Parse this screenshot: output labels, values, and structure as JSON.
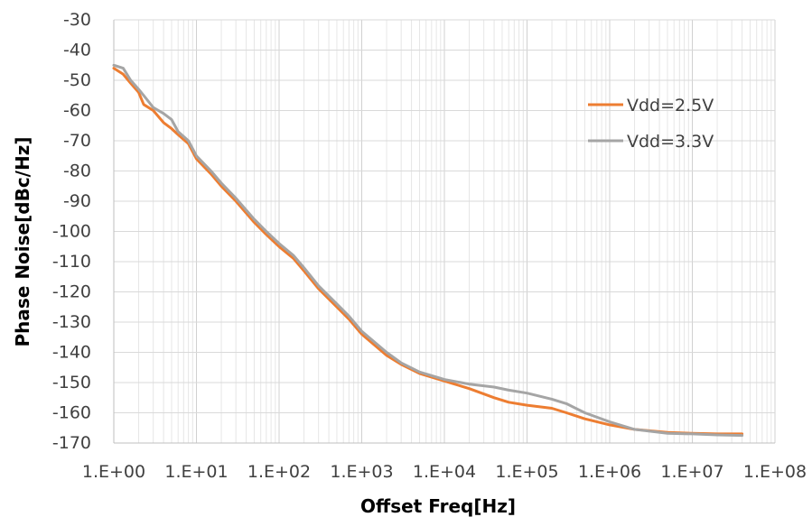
{
  "chart_data": {
    "type": "line",
    "xlabel": "Offset Freq[Hz]",
    "ylabel": "Phase Noise[dBc/Hz]",
    "x_scale": "log",
    "xlim": [
      1,
      100000000
    ],
    "ylim": [
      -170,
      -30
    ],
    "grid": true,
    "legend_position": "right",
    "x_ticks": [
      {
        "value": 1,
        "label": "1.E+00"
      },
      {
        "value": 10,
        "label": "1.E+01"
      },
      {
        "value": 100,
        "label": "1.E+02"
      },
      {
        "value": 1000,
        "label": "1.E+03"
      },
      {
        "value": 10000,
        "label": "1.E+04"
      },
      {
        "value": 100000,
        "label": "1.E+05"
      },
      {
        "value": 1000000,
        "label": "1.E+06"
      },
      {
        "value": 10000000,
        "label": "1.E+07"
      },
      {
        "value": 100000000,
        "label": "1.E+08"
      }
    ],
    "y_ticks": [
      {
        "value": -30,
        "label": "-30"
      },
      {
        "value": -40,
        "label": "-40"
      },
      {
        "value": -50,
        "label": "-50"
      },
      {
        "value": -60,
        "label": "-60"
      },
      {
        "value": -70,
        "label": "-70"
      },
      {
        "value": -80,
        "label": "-80"
      },
      {
        "value": -90,
        "label": "-90"
      },
      {
        "value": -100,
        "label": "-100"
      },
      {
        "value": -110,
        "label": "-110"
      },
      {
        "value": -120,
        "label": "-120"
      },
      {
        "value": -130,
        "label": "-130"
      },
      {
        "value": -140,
        "label": "-140"
      },
      {
        "value": -150,
        "label": "-150"
      },
      {
        "value": -160,
        "label": "-160"
      },
      {
        "value": -170,
        "label": "-170"
      }
    ],
    "series": [
      {
        "name": "Vdd=2.5V",
        "color": "#ED7D31",
        "points": [
          [
            1.0,
            -46
          ],
          [
            1.3,
            -48
          ],
          [
            1.6,
            -51
          ],
          [
            2.0,
            -54
          ],
          [
            2.3,
            -58
          ],
          [
            3.0,
            -60
          ],
          [
            4.0,
            -64
          ],
          [
            5.0,
            -66
          ],
          [
            6.0,
            -68
          ],
          [
            8.0,
            -71
          ],
          [
            10,
            -76
          ],
          [
            15,
            -81
          ],
          [
            20,
            -85
          ],
          [
            30,
            -90
          ],
          [
            50,
            -97
          ],
          [
            70,
            -101
          ],
          [
            100,
            -105
          ],
          [
            150,
            -109
          ],
          [
            200,
            -113
          ],
          [
            300,
            -119
          ],
          [
            500,
            -125
          ],
          [
            700,
            -129
          ],
          [
            1000,
            -134
          ],
          [
            2000,
            -141
          ],
          [
            3000,
            -144
          ],
          [
            5000,
            -147
          ],
          [
            10000,
            -149.5
          ],
          [
            20000,
            -152
          ],
          [
            40000,
            -155
          ],
          [
            60000,
            -156.5
          ],
          [
            100000,
            -157.5
          ],
          [
            200000,
            -158.5
          ],
          [
            300000,
            -160
          ],
          [
            500000,
            -162
          ],
          [
            1000000,
            -164
          ],
          [
            2000000,
            -165.5
          ],
          [
            5000000,
            -166.5
          ],
          [
            10000000,
            -166.8
          ],
          [
            20000000,
            -167
          ],
          [
            40000000,
            -167
          ]
        ]
      },
      {
        "name": "Vdd=3.3V",
        "color": "#A5A5A5",
        "points": [
          [
            1.0,
            -45
          ],
          [
            1.3,
            -46
          ],
          [
            1.6,
            -50
          ],
          [
            2.0,
            -53
          ],
          [
            2.3,
            -55
          ],
          [
            3.0,
            -59
          ],
          [
            4.0,
            -61
          ],
          [
            5.0,
            -63
          ],
          [
            6.0,
            -67
          ],
          [
            8.0,
            -70
          ],
          [
            10,
            -75
          ],
          [
            15,
            -80
          ],
          [
            20,
            -84
          ],
          [
            30,
            -89
          ],
          [
            50,
            -96
          ],
          [
            70,
            -100
          ],
          [
            100,
            -104
          ],
          [
            150,
            -108
          ],
          [
            200,
            -112
          ],
          [
            300,
            -118
          ],
          [
            500,
            -124
          ],
          [
            700,
            -128
          ],
          [
            1000,
            -133
          ],
          [
            2000,
            -140
          ],
          [
            3000,
            -143.5
          ],
          [
            5000,
            -146.5
          ],
          [
            10000,
            -149
          ],
          [
            20000,
            -150.5
          ],
          [
            40000,
            -151.5
          ],
          [
            60000,
            -152.5
          ],
          [
            100000,
            -153.5
          ],
          [
            200000,
            -155.5
          ],
          [
            300000,
            -157
          ],
          [
            500000,
            -160
          ],
          [
            1000000,
            -163
          ],
          [
            2000000,
            -165.5
          ],
          [
            5000000,
            -166.8
          ],
          [
            10000000,
            -167
          ],
          [
            20000000,
            -167.3
          ],
          [
            40000000,
            -167.5
          ]
        ]
      }
    ]
  }
}
